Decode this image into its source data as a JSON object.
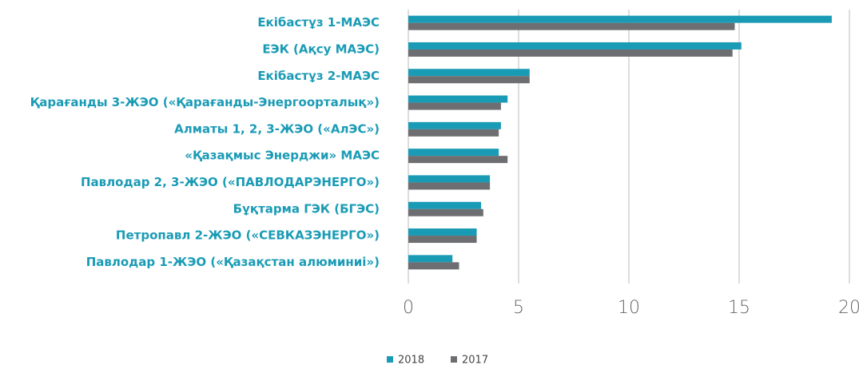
{
  "chart_data": {
    "type": "bar",
    "orientation": "horizontal",
    "categories": [
      "Екібастұз 1-МАЭС",
      "ЕЭК (Ақсу МАЭС)",
      "Екібастұз 2-МАЭС",
      "Қарағанды 3-ЖЭО («Қарағанды-Энергоорталық»)",
      "Алматы 1, 2, 3-ЖЭО («АлЭС»)",
      "«Қазақмыс Энерджи» МАЭС",
      "Павлодар 2, 3-ЖЭО («ПАВЛОДАРЭНЕРГО»)",
      "Бұқтарма ГЭК (БГЭС)",
      "Петропавл 2-ЖЭО («СЕВКАЗЭНЕРГО»)",
      "Павлодар 1-ЖЭО («Қазақстан алюминиі»)"
    ],
    "series": [
      {
        "name": "2018",
        "color": "#1a9bb5",
        "values": [
          19.2,
          15.1,
          5.5,
          4.5,
          4.2,
          4.1,
          3.7,
          3.3,
          3.1,
          2.0
        ]
      },
      {
        "name": "2017",
        "color": "#6d6e71",
        "values": [
          14.8,
          14.7,
          5.5,
          4.2,
          4.1,
          4.5,
          3.7,
          3.4,
          3.1,
          2.3
        ]
      }
    ],
    "xlim": [
      0,
      20
    ],
    "xticks": [
      0,
      5,
      10,
      15,
      20
    ],
    "grid": true,
    "legend": "bottom"
  }
}
